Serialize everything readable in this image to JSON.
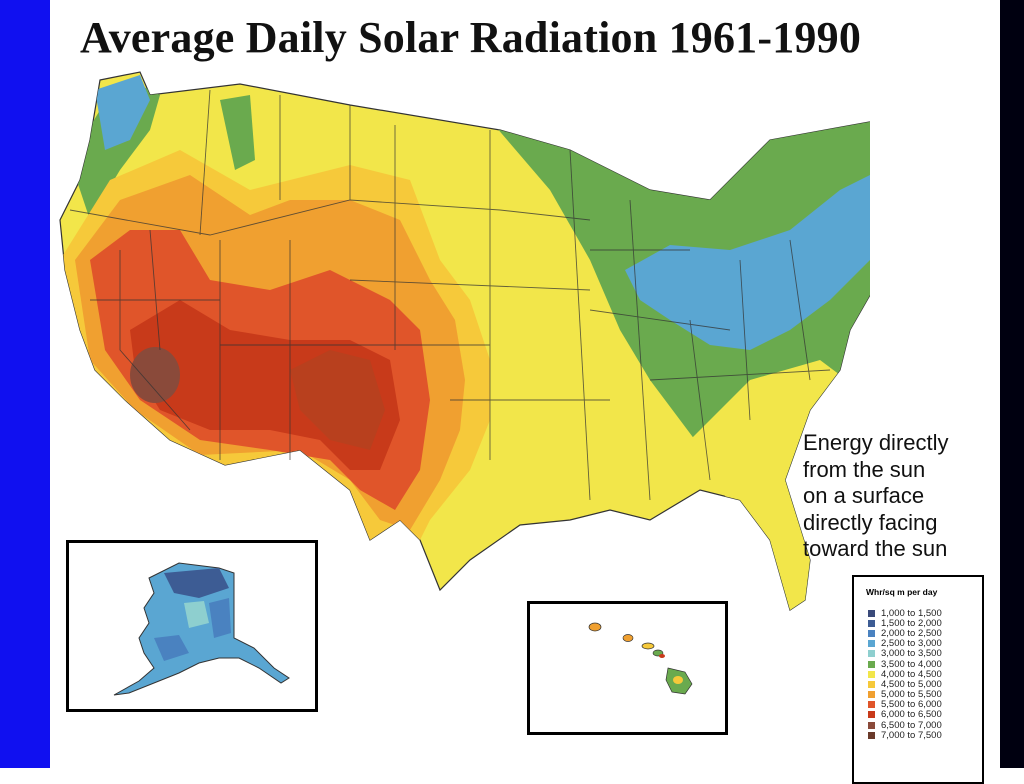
{
  "title": "Average Daily Solar Radiation 1961-1990",
  "caption_lines": [
    "Energy directly",
    "from the sun",
    "on a surface",
    "directly facing",
    "toward the sun"
  ],
  "legend": {
    "title": "Whr/sq m per day",
    "items": [
      {
        "label": "1,000 to 1,500",
        "color": "#3a4a7a"
      },
      {
        "label": "1,500 to 2,000",
        "color": "#3d5c94"
      },
      {
        "label": "2,000 to 2,500",
        "color": "#4a82c0"
      },
      {
        "label": "2,500 to 3,000",
        "color": "#5aa6d2"
      },
      {
        "label": "3,000 to 3,500",
        "color": "#8ecfcf"
      },
      {
        "label": "3,500 to 4,000",
        "color": "#6aaa4e"
      },
      {
        "label": "4,000 to 4,500",
        "color": "#f2e64a"
      },
      {
        "label": "4,500 to 5,000",
        "color": "#f6c93a"
      },
      {
        "label": "5,000 to 5,500",
        "color": "#f0a030"
      },
      {
        "label": "5,500 to 6,000",
        "color": "#e0552a"
      },
      {
        "label": "6,000 to 6,500",
        "color": "#c83a1a"
      },
      {
        "label": "6,500 to 7,000",
        "color": "#8a4a3a"
      },
      {
        "label": "7,000 to 7,500",
        "color": "#6a3a2a"
      }
    ]
  },
  "insets": [
    "Alaska",
    "Hawaii"
  ]
}
